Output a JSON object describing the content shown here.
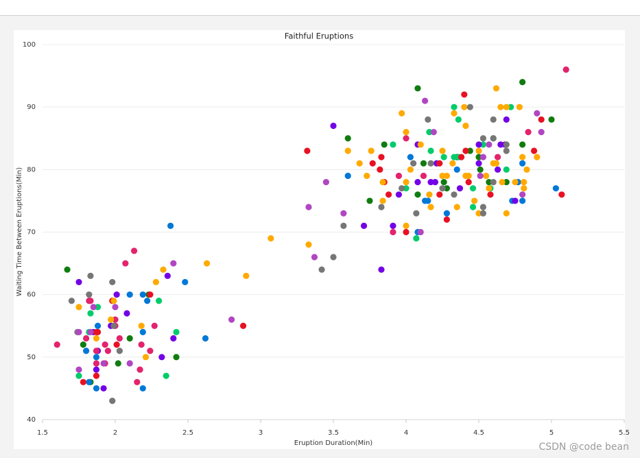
{
  "chart_data": {
    "type": "scatter",
    "title": "Faithful Eruptions",
    "x_label": "Eruption Duration(Min)",
    "y_label": "Waiting Time Between Eruptions(Min)",
    "xlim": [
      1.5,
      5.5
    ],
    "xticks": [
      1.5,
      2,
      2.5,
      3,
      3.5,
      4,
      4.5,
      5,
      5.5
    ],
    "ylim": [
      40,
      100
    ],
    "yticks": [
      40,
      50,
      60,
      70,
      80,
      90,
      100
    ],
    "grid": true,
    "series": [
      {
        "color": "#107c10",
        "x": [
          1.67,
          1.78,
          1.83,
          2.02,
          2.1,
          2.23,
          2.42,
          3.6,
          3.75,
          3.85,
          4.08,
          4.08,
          4.12,
          4.26,
          4.28,
          4.35,
          4.44,
          4.5,
          4.51,
          4.57,
          4.6,
          4.69,
          4.8,
          4.8,
          5.0
        ],
        "values": [
          64,
          52,
          46,
          49,
          53,
          60,
          50,
          85,
          75,
          84,
          93,
          76,
          81,
          78,
          77,
          82,
          83,
          82,
          80,
          78,
          85,
          78,
          94,
          84,
          88
        ]
      },
      {
        "color": "#00cc6a",
        "x": [
          1.75,
          1.82,
          1.83,
          1.88,
          2.3,
          2.35,
          2.42,
          3.91,
          4.0,
          4.07,
          4.16,
          4.17,
          4.26,
          4.33,
          4.33,
          4.36,
          4.36,
          4.46,
          4.46,
          4.53,
          4.58,
          4.69,
          4.72
        ],
        "values": [
          47,
          54,
          57,
          58,
          59,
          47,
          54,
          84,
          77,
          69,
          86,
          83,
          82,
          90,
          82,
          82,
          88,
          74,
          77,
          84,
          77,
          80,
          90
        ]
      },
      {
        "color": "#0078d7",
        "x": [
          1.8,
          1.82,
          1.87,
          1.87,
          1.88,
          2.1,
          2.19,
          2.19,
          2.19,
          2.22,
          2.38,
          2.48,
          2.62,
          3.6,
          4.03,
          4.08,
          4.13,
          4.15,
          4.28,
          4.35,
          4.73,
          4.77,
          4.8,
          4.8,
          5.03
        ],
        "values": [
          51,
          46,
          50,
          45,
          55,
          60,
          45,
          54,
          60,
          59,
          71,
          62,
          53,
          79,
          82,
          70,
          75,
          75,
          73,
          80,
          75,
          78,
          81,
          75,
          77
        ]
      },
      {
        "color": "#7300e6",
        "x": [
          1.75,
          1.85,
          1.88,
          1.87,
          1.92,
          1.97,
          2.01,
          2.08,
          2.32,
          2.36,
          2.4,
          3.5,
          3.71,
          3.83,
          3.91,
          3.95,
          4.08,
          4.08,
          4.17,
          4.2,
          4.21,
          4.37,
          4.5,
          4.5,
          4.63,
          4.65,
          4.68,
          4.69,
          4.75
        ],
        "values": [
          62,
          54,
          51,
          48,
          45,
          55,
          60,
          57,
          50,
          63,
          53,
          87,
          71,
          64,
          71,
          76,
          84,
          78,
          78,
          78,
          81,
          77,
          84,
          81,
          80,
          84,
          84,
          88,
          75
        ]
      },
      {
        "color": "#e3236b",
        "x": [
          1.6,
          1.8,
          1.82,
          1.83,
          1.87,
          1.87,
          1.93,
          1.93,
          1.95,
          2.0,
          2.0,
          2.03,
          2.07,
          2.13,
          2.15,
          2.17,
          2.18,
          2.24,
          2.27,
          3.91,
          3.95,
          4.0,
          4.12,
          4.63,
          4.84,
          5.1
        ],
        "values": [
          52,
          53,
          59,
          59,
          51,
          49,
          49,
          52,
          51,
          56,
          55,
          53,
          65,
          67,
          46,
          48,
          52,
          51,
          55,
          70,
          79,
          85,
          79,
          82,
          86,
          96
        ]
      },
      {
        "color": "#e81123",
        "x": [
          1.78,
          1.87,
          1.87,
          1.88,
          1.98,
          2.01,
          2.24,
          2.88,
          3.32,
          3.77,
          3.82,
          3.83,
          3.85,
          3.88,
          4.0,
          4.23,
          4.23,
          4.28,
          4.38,
          4.4,
          4.41,
          4.43,
          4.58,
          4.88,
          4.93,
          5.07
        ],
        "values": [
          46,
          54,
          47,
          54,
          59,
          52,
          60,
          55,
          83,
          81,
          80,
          82,
          78,
          76,
          70,
          81,
          76,
          72,
          82,
          92,
          83,
          78,
          76,
          83,
          88,
          76
        ]
      },
      {
        "color": "#ffaa00",
        "x": [
          1.75,
          1.87,
          1.97,
          1.99,
          2.18,
          2.21,
          2.28,
          2.33,
          2.63,
          2.9,
          3.07,
          3.33,
          3.6,
          3.68,
          3.73,
          3.76,
          3.84,
          3.84,
          3.97,
          4.0,
          4.0,
          4.0,
          4.03,
          4.1,
          4.16,
          4.17,
          4.25,
          4.25,
          4.28,
          4.32,
          4.33,
          4.35,
          4.4,
          4.41,
          4.41,
          4.43,
          4.47,
          4.5,
          4.5,
          4.55,
          4.57,
          4.6,
          4.62,
          4.62,
          4.65,
          4.66,
          4.69,
          4.69,
          4.75,
          4.78,
          4.8,
          4.81,
          4.81,
          4.83,
          4.9
        ],
        "values": [
          58,
          53,
          56,
          59,
          55,
          50,
          62,
          64,
          65,
          63,
          69,
          68,
          83,
          81,
          79,
          83,
          78,
          75,
          89,
          78,
          86,
          71,
          80,
          84,
          76,
          74,
          83,
          79,
          79,
          81,
          89,
          74,
          90,
          87,
          79,
          79,
          75,
          73,
          83,
          79,
          77,
          81,
          93,
          81,
          90,
          78,
          90,
          73,
          78,
          90,
          82,
          78,
          77,
          80,
          82
        ]
      },
      {
        "color": "#767676",
        "x": [
          1.7,
          1.74,
          1.82,
          1.83,
          1.98,
          1.99,
          2.03,
          1.98,
          3.42,
          3.5,
          3.57,
          3.83,
          3.97,
          4.05,
          4.07,
          4.15,
          4.17,
          4.25,
          4.33,
          4.44,
          4.53,
          4.53,
          4.53,
          4.6,
          4.6,
          4.6,
          4.69,
          4.69
        ],
        "values": [
          59,
          54,
          60,
          63,
          62,
          55,
          51,
          43,
          64,
          66,
          71,
          74,
          77,
          81,
          73,
          88,
          81,
          77,
          76,
          90,
          85,
          74,
          73,
          85,
          88,
          78,
          84,
          83
        ]
      },
      {
        "color": "#b146c2",
        "x": [
          1.75,
          1.75,
          1.83,
          1.85,
          1.92,
          2.0,
          2.1,
          2.4,
          2.8,
          3.33,
          3.37,
          3.45,
          3.57,
          4.1,
          4.13,
          4.19,
          4.51,
          4.53,
          4.57,
          4.8,
          4.9,
          4.93
        ],
        "values": [
          54,
          48,
          54,
          58,
          49,
          58,
          49,
          65,
          56,
          74,
          66,
          78,
          73,
          70,
          91,
          86,
          79,
          82,
          84,
          76,
          89,
          86
        ]
      }
    ]
  },
  "watermark": "CSDN @code bean"
}
